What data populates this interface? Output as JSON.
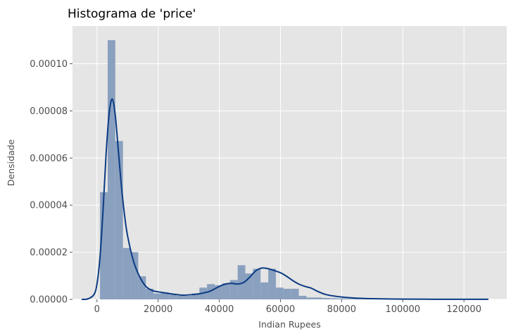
{
  "chart_data": {
    "type": "bar",
    "title": "Histograma de 'price'",
    "xlabel": "Indian Rupees",
    "ylabel": "Densidade",
    "xlim": [
      -8000,
      134000
    ],
    "ylim": [
      0,
      0.000116
    ],
    "grid": true,
    "x_ticks": [
      0,
      20000,
      40000,
      60000,
      80000,
      100000,
      120000
    ],
    "x_tick_labels": [
      "0",
      "20000",
      "40000",
      "60000",
      "80000",
      "100000",
      "120000"
    ],
    "y_ticks": [
      0,
      2e-05,
      4e-05,
      6e-05,
      8e-05,
      0.0001
    ],
    "y_tick_labels": [
      "0.00000",
      "0.00002",
      "0.00004",
      "0.00006",
      "0.00008",
      "0.00010"
    ],
    "colors": {
      "background": "#e5e5e5",
      "grid": "#ffffff",
      "bars": "#8aa0bf",
      "kde_line": "#0b3b82"
    },
    "series": [
      {
        "type": "histogram",
        "bin_edges": [
          1000,
          3500,
          6000,
          8500,
          11000,
          13500,
          16000,
          18500,
          21000,
          23500,
          26000,
          28500,
          31000,
          33500,
          36000,
          38500,
          41000,
          43500,
          46000,
          48500,
          51000,
          53500,
          56000,
          58500,
          61000,
          63500,
          66000,
          68500,
          71000,
          73500,
          76000,
          78500,
          81000,
          83500,
          86000,
          88500,
          91000,
          93500,
          96000,
          98500,
          101000,
          103500,
          106000,
          108500,
          111000,
          113500,
          116000,
          118500,
          121000,
          123500,
          126000
        ],
        "densities": [
          4.55e-05,
          0.00011,
          6.72e-05,
          2.18e-05,
          2e-05,
          9.8e-06,
          4.5e-06,
          2.5e-06,
          3e-06,
          2e-06,
          1.5e-06,
          1.5e-06,
          2.5e-06,
          5e-06,
          6.5e-06,
          6e-06,
          6.8e-06,
          8.2e-06,
          1.45e-05,
          1.1e-05,
          1.3e-05,
          7.2e-06,
          1.3e-05,
          5e-06,
          4.5e-06,
          4.5e-06,
          1.5e-06,
          8e-07,
          8e-07,
          6e-07,
          5e-07,
          4e-07,
          3e-07,
          3e-07,
          2e-07,
          2e-07,
          2e-07,
          1e-07,
          1e-07,
          1e-07,
          1e-07,
          1e-07,
          1e-07,
          1e-07,
          1e-07,
          1e-07,
          1e-07,
          1e-07,
          1e-07,
          1e-07
        ]
      },
      {
        "type": "line",
        "x": [
          -5000,
          -3000,
          -1000,
          0,
          1000,
          2000,
          3000,
          4000,
          5000,
          6000,
          7000,
          8000,
          9000,
          10000,
          12000,
          14000,
          16000,
          18000,
          20000,
          22000,
          25000,
          28000,
          31000,
          34000,
          37000,
          40000,
          42000,
          44000,
          46000,
          48000,
          50000,
          52000,
          54000,
          56000,
          58000,
          60000,
          62000,
          64000,
          66000,
          68000,
          70000,
          72000,
          75000,
          80000,
          85000,
          90000,
          100000,
          110000,
          120000,
          128000
        ],
        "y": [
          0,
          2e-07,
          2e-06,
          6.5e-06,
          1.8e-05,
          3.8e-05,
          6.2e-05,
          7.9e-05,
          8.5e-05,
          7.8e-05,
          6.3e-05,
          4.8e-05,
          3.6e-05,
          2.7e-05,
          1.6e-05,
          9.5e-06,
          5.5e-06,
          3.8e-06,
          3.2e-06,
          2.8e-06,
          2.2e-06,
          1.8e-06,
          2e-06,
          2.5e-06,
          3.5e-06,
          5.5e-06,
          6.5e-06,
          6.8e-06,
          6.5e-06,
          7.2e-06,
          9.5e-06,
          1.22e-05,
          1.33e-05,
          1.3e-05,
          1.22e-05,
          1.13e-05,
          9.8e-06,
          8e-06,
          6.5e-06,
          5.5e-06,
          4.8e-06,
          3.5e-06,
          2e-06,
          1e-06,
          5e-07,
          3e-07,
          1e-07,
          5e-08,
          3e-08,
          2e-08
        ]
      }
    ]
  }
}
